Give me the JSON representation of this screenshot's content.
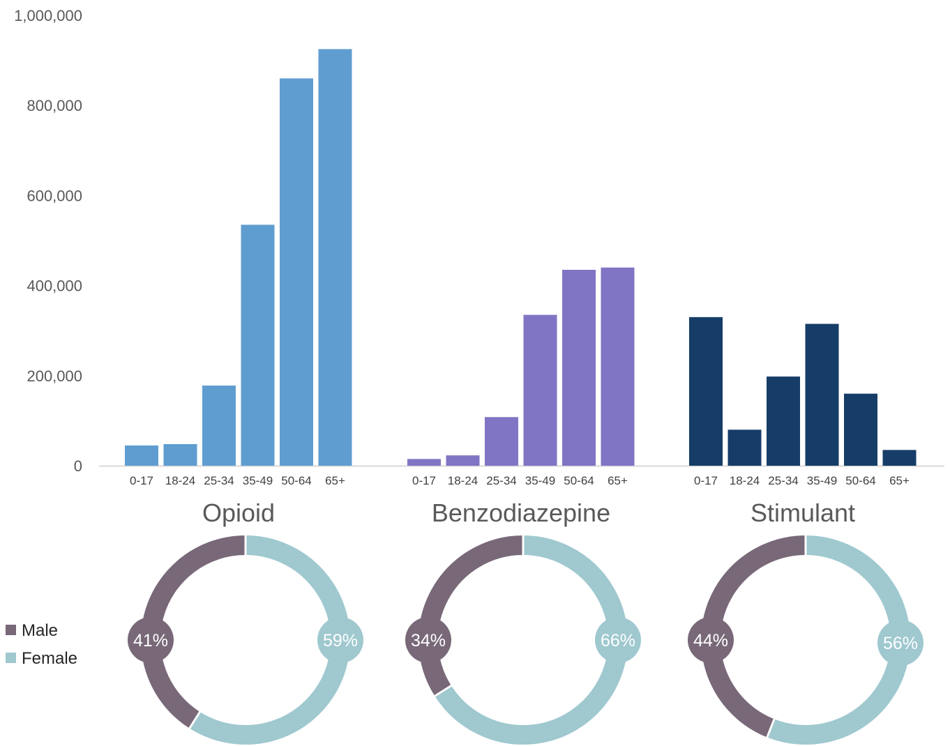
{
  "chart_data": [
    {
      "type": "bar",
      "grouped_layout": "three side-by-side category groups sharing one y-axis",
      "ylim": [
        0,
        1000000
      ],
      "yticks": [
        "0",
        "200,000",
        "400,000",
        "600,000",
        "800,000",
        "1,000,000"
      ],
      "categories": [
        "0-17",
        "18-24",
        "25-34",
        "35-49",
        "50-64",
        "65+"
      ],
      "groups": [
        {
          "name": "Opioid",
          "color": "#5f9dd1",
          "values": [
            45000,
            48000,
            178000,
            535000,
            860000,
            925000
          ]
        },
        {
          "name": "Benzodiazepine",
          "color": "#8075c4",
          "values": [
            15000,
            23000,
            108000,
            335000,
            435000,
            440000
          ]
        },
        {
          "name": "Stimulant",
          "color": "#163d68",
          "values": [
            330000,
            80000,
            198000,
            315000,
            160000,
            35000
          ]
        }
      ],
      "grid": false
    },
    {
      "type": "pie",
      "style": "donut",
      "legend": {
        "placement": "left",
        "entries": [
          "Male",
          "Female"
        ]
      },
      "colors": {
        "Male": "#786878",
        "Female": "#9fc8cf"
      },
      "donuts": [
        {
          "group": "Opioid",
          "male": 41,
          "female": 59,
          "male_label": "41%",
          "female_label": "59%"
        },
        {
          "group": "Benzodiazepine",
          "male": 34,
          "female": 66,
          "male_label": "34%",
          "female_label": "66%"
        },
        {
          "group": "Stimulant",
          "male": 44,
          "female": 56,
          "male_label": "44%",
          "female_label": "56%"
        }
      ]
    }
  ]
}
